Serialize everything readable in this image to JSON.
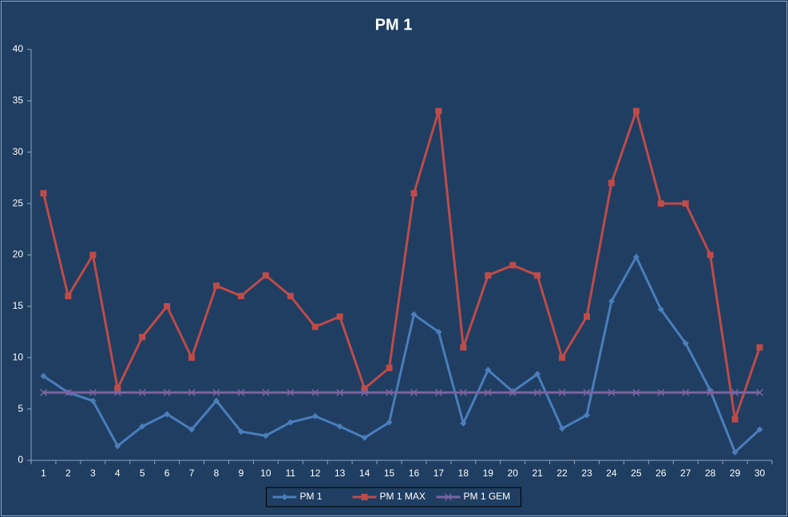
{
  "chart_data": {
    "type": "line",
    "title": "PM 1",
    "categories": [
      "1",
      "2",
      "3",
      "4",
      "5",
      "6",
      "7",
      "8",
      "9",
      "10",
      "11",
      "12",
      "13",
      "14",
      "15",
      "16",
      "17",
      "18",
      "19",
      "20",
      "21",
      "22",
      "23",
      "24",
      "25",
      "26",
      "27",
      "28",
      "29",
      "30"
    ],
    "series": [
      {
        "name": "PM 1",
        "color": "#4a7ebb",
        "marker": "diamond",
        "values": [
          8.2,
          6.6,
          5.8,
          1.4,
          3.3,
          4.5,
          3.0,
          5.8,
          2.8,
          2.4,
          3.7,
          4.3,
          3.3,
          2.2,
          3.7,
          14.2,
          12.5,
          3.6,
          8.8,
          6.7,
          8.4,
          3.1,
          4.4,
          15.5,
          19.8,
          14.7,
          11.4,
          6.8,
          0.8,
          3.0
        ]
      },
      {
        "name": "PM 1 MAX",
        "color": "#be4b48",
        "marker": "square",
        "values": [
          26,
          16,
          20,
          7,
          12,
          15,
          10,
          17,
          16,
          18,
          16,
          13,
          14,
          7,
          9,
          26,
          34,
          11,
          18,
          19,
          18,
          10,
          14,
          27,
          34,
          25,
          25,
          20,
          4,
          11
        ]
      },
      {
        "name": "PM 1 GEM",
        "color": "#7e63a0",
        "marker": "x",
        "values": [
          6.6,
          6.6,
          6.6,
          6.6,
          6.6,
          6.6,
          6.6,
          6.6,
          6.6,
          6.6,
          6.6,
          6.6,
          6.6,
          6.6,
          6.6,
          6.6,
          6.6,
          6.6,
          6.6,
          6.6,
          6.6,
          6.6,
          6.6,
          6.6,
          6.6,
          6.6,
          6.6,
          6.6,
          6.6,
          6.6
        ]
      }
    ],
    "ylim": [
      0,
      40
    ],
    "yticks": [
      0,
      5,
      10,
      15,
      20,
      25,
      30,
      35,
      40
    ],
    "grid": false,
    "legend": "bottom"
  }
}
